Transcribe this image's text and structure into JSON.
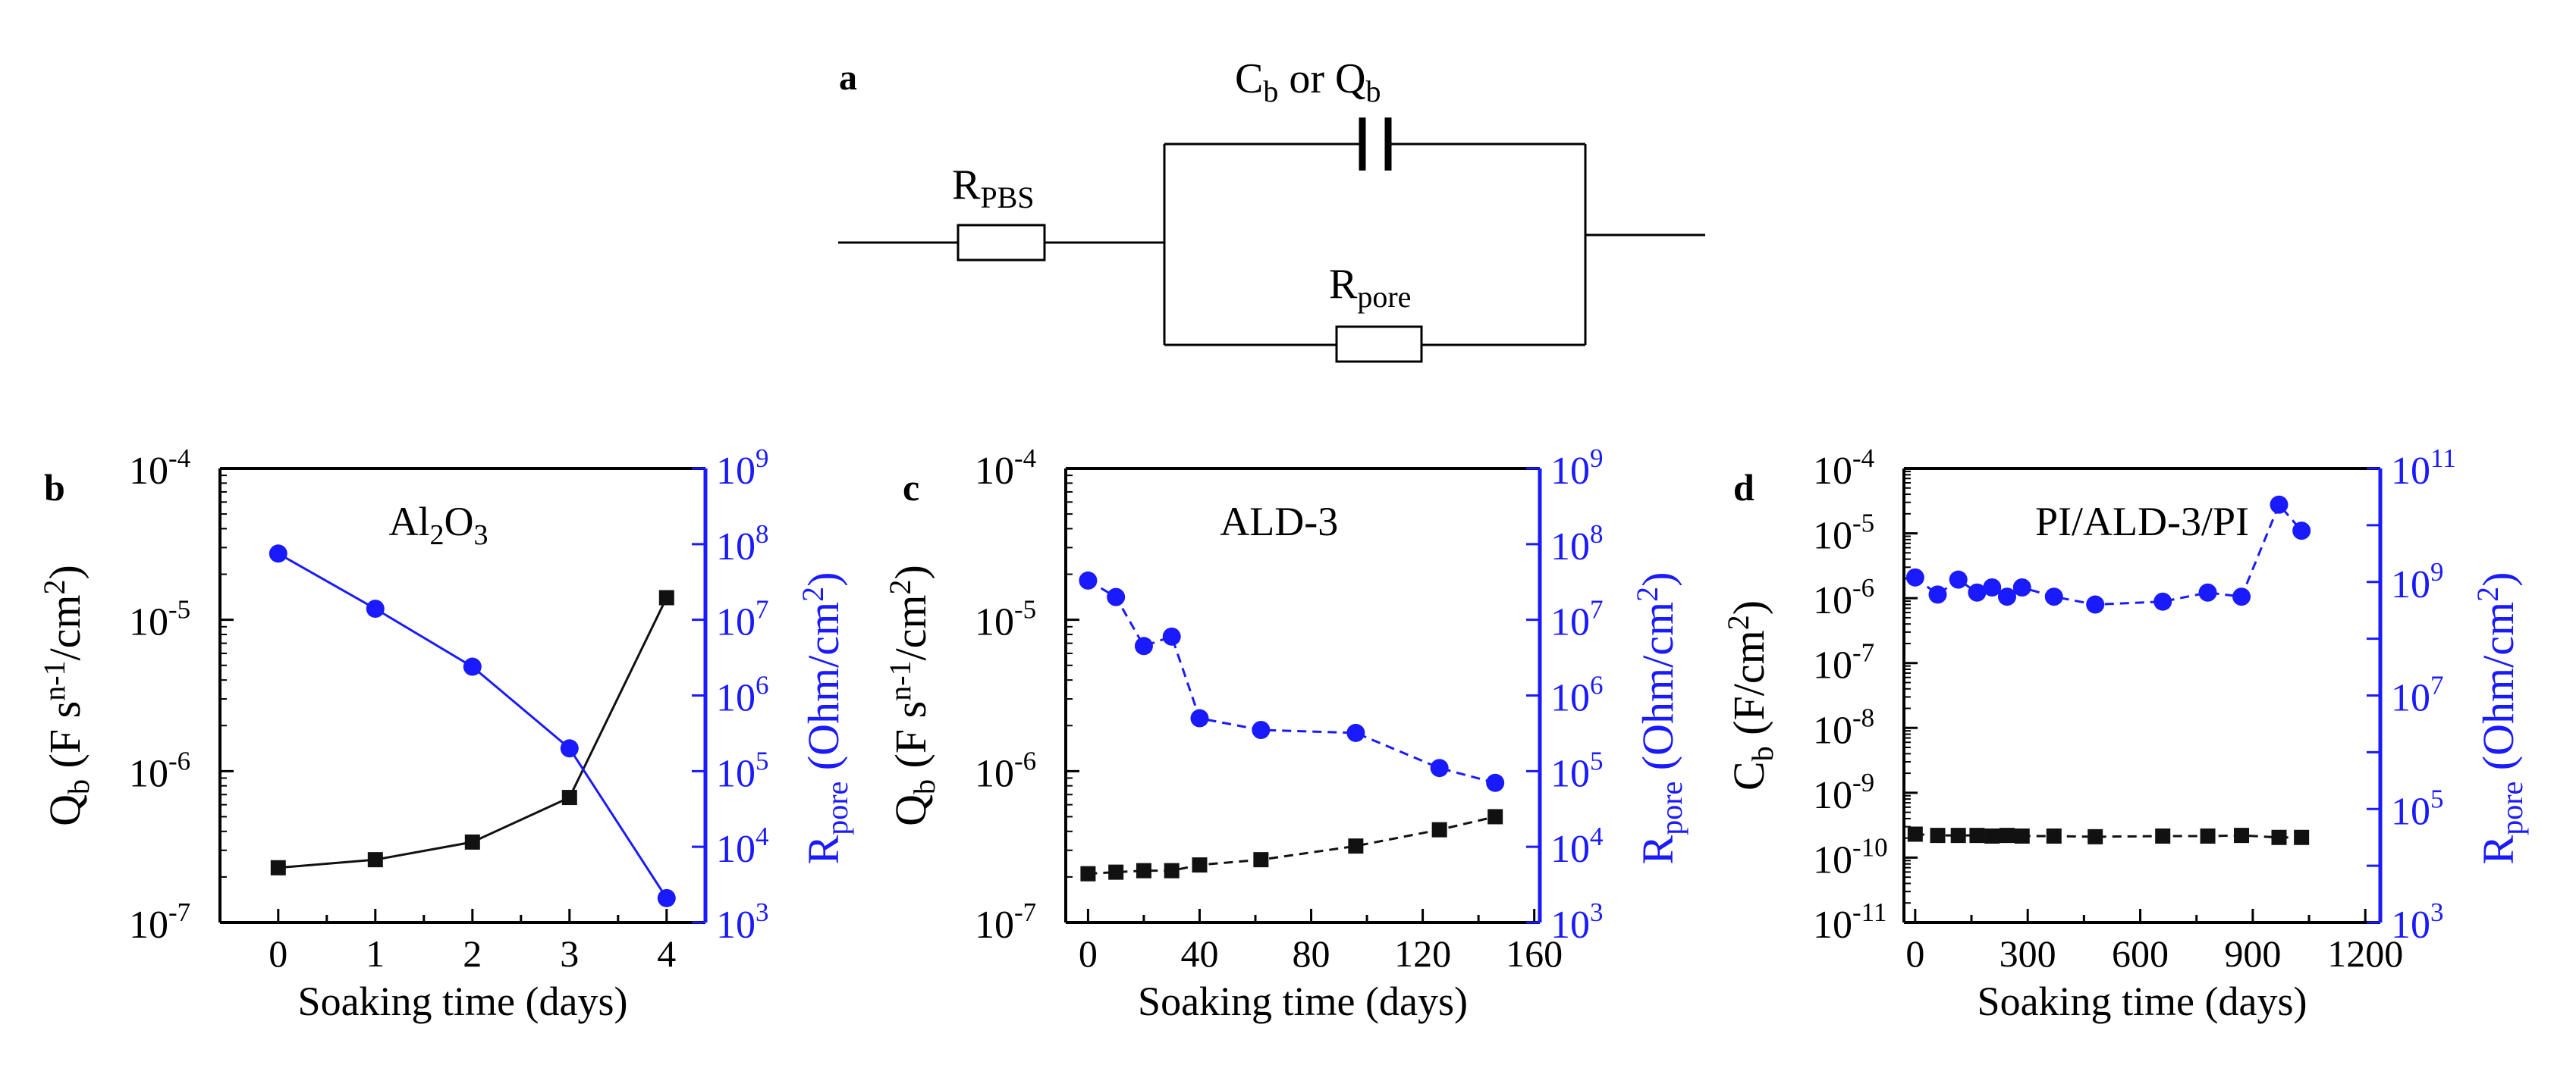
{
  "colors": {
    "left_series": "#111111",
    "right_series": "#1a1aff",
    "axis_left": "#000000",
    "axis_right": "#1a1aff",
    "circuit": "#000000"
  },
  "circuit": {
    "panel_label": "a",
    "r_pbs": {
      "base": "R",
      "sub": "PBS"
    },
    "cap": {
      "base1": "C",
      "sub1": "b",
      "or": " or ",
      "base2": "Q",
      "sub2": "b"
    },
    "r_pore": {
      "base": "R",
      "sub": "pore"
    }
  },
  "chart_data": [
    {
      "type": "line",
      "panel": "b",
      "title": "Al2O3",
      "title_parts": {
        "a": "Al",
        "b": "2",
        "c": "O",
        "d": "3"
      },
      "xlabel": "Soaking time (days)",
      "xlim": [
        -0.6,
        4.4
      ],
      "xticks": [
        0,
        1,
        2,
        3,
        4
      ],
      "xtick_labels": [
        "0",
        "1",
        "2",
        "3",
        "4"
      ],
      "left_axis": {
        "label_base": "Q",
        "label_sub": "b",
        "label_rest_pre": " (F s",
        "label_sup": "n-1",
        "label_rest_post": "/cm",
        "label_sup2": "2",
        "label_close": ")",
        "log_min": -7,
        "log_max": -4,
        "tick_exps": [
          "-7",
          "-6",
          "-5",
          "-4"
        ]
      },
      "right_axis": {
        "label_base": "R",
        "label_sub": "pore",
        "label_rest": " (Ohm/cm",
        "label_sup": "2",
        "label_close": ")",
        "log_min": 3,
        "log_max": 9,
        "tick_exps": [
          "3",
          "4",
          "5",
          "6",
          "7",
          "8",
          "9"
        ]
      },
      "series": [
        {
          "name": "Qb",
          "axis": "left",
          "marker": "square",
          "line": "solid",
          "x": [
            0,
            1,
            2,
            3,
            4
          ],
          "y": [
            2.3e-07,
            2.6e-07,
            3.4e-07,
            6.7e-07,
            1.4e-05
          ]
        },
        {
          "name": "Rpore",
          "axis": "right",
          "marker": "circle",
          "line": "solid",
          "x": [
            0,
            1,
            2,
            3,
            4
          ],
          "y": [
            75000000.0,
            14000000.0,
            2400000.0,
            200000.0,
            2100.0
          ]
        }
      ]
    },
    {
      "type": "line",
      "panel": "c",
      "title": "ALD-3",
      "xlabel": "Soaking time (days)",
      "xlim": [
        -8,
        162
      ],
      "xticks": [
        0,
        40,
        80,
        120,
        160
      ],
      "xtick_labels": [
        "0",
        "40",
        "80",
        "120",
        "160"
      ],
      "left_axis": {
        "label_base": "Q",
        "label_sub": "b",
        "label_rest_pre": " (F s",
        "label_sup": "n-1",
        "label_rest_post": "/cm",
        "label_sup2": "2",
        "label_close": ")",
        "log_min": -7,
        "log_max": -4,
        "tick_exps": [
          "-7",
          "-6",
          "-5",
          "-4"
        ]
      },
      "right_axis": {
        "label_base": "R",
        "label_sub": "pore",
        "label_rest": " (Ohm/cm",
        "label_sup": "2",
        "label_close": ")",
        "log_min": 3,
        "log_max": 9,
        "tick_exps": [
          "3",
          "4",
          "5",
          "6",
          "7",
          "8",
          "9"
        ]
      },
      "series": [
        {
          "name": "Qb",
          "axis": "left",
          "marker": "square",
          "line": "dashed",
          "x": [
            0,
            10,
            20,
            30,
            40,
            62,
            96,
            126,
            146
          ],
          "y": [
            2.1e-07,
            2.15e-07,
            2.2e-07,
            2.2e-07,
            2.4e-07,
            2.6e-07,
            3.2e-07,
            4.1e-07,
            5e-07
          ]
        },
        {
          "name": "Rpore",
          "axis": "right",
          "marker": "circle",
          "line": "dashed",
          "x": [
            0,
            10,
            20,
            30,
            40,
            62,
            96,
            126,
            146
          ],
          "y": [
            33000000.0,
            20000000.0,
            4500000.0,
            6000000.0,
            500000.0,
            350000.0,
            320000.0,
            110000.0,
            70000.0
          ]
        }
      ]
    },
    {
      "type": "line",
      "panel": "d",
      "title": "PI/ALD-3/PI",
      "xlabel": "Soaking time (days)",
      "xlim": [
        -30,
        1240
      ],
      "xticks": [
        0,
        300,
        600,
        900,
        1200
      ],
      "xtick_labels": [
        "0",
        "300",
        "600",
        "900",
        "1200"
      ],
      "left_axis": {
        "label_base": "C",
        "label_sub": "b",
        "label_rest_pre": " (F/cm",
        "label_sup": "",
        "label_rest_post": "",
        "label_sup2": "2",
        "label_close": ")",
        "log_min": -11,
        "log_max": -4,
        "tick_exps": [
          "-11",
          "-10",
          "-9",
          "-8",
          "-7",
          "-6",
          "-5",
          "-4"
        ]
      },
      "right_axis": {
        "label_base": "R",
        "label_sub": "pore",
        "label_rest": " (Ohm/cm",
        "label_sup": "2",
        "label_close": ")",
        "log_min": 3,
        "log_max": 11,
        "tick_exps": [
          "3",
          "5",
          "7",
          "9",
          "11"
        ]
      },
      "series": [
        {
          "name": "Cb",
          "axis": "left",
          "marker": "square",
          "line": "dashed",
          "x": [
            0,
            60,
            115,
            165,
            205,
            245,
            285,
            370,
            480,
            660,
            780,
            870,
            970,
            1030
          ],
          "y": [
            2.3e-10,
            2.2e-10,
            2.2e-10,
            2.2e-10,
            2.15e-10,
            2.2e-10,
            2.15e-10,
            2.15e-10,
            2.1e-10,
            2.15e-10,
            2.15e-10,
            2.2e-10,
            2.05e-10,
            2.05e-10
          ]
        },
        {
          "name": "Rpore",
          "axis": "right",
          "marker": "circle",
          "line": "dashed",
          "x": [
            0,
            60,
            115,
            165,
            205,
            245,
            285,
            370,
            480,
            660,
            780,
            870,
            970,
            1030
          ],
          "y": [
            1200000000.0,
            600000000.0,
            1100000000.0,
            650000000.0,
            800000000.0,
            550000000.0,
            800000000.0,
            550000000.0,
            400000000.0,
            450000000.0,
            650000000.0,
            550000000.0,
            23000000000.0,
            8000000000.0
          ]
        }
      ]
    }
  ]
}
